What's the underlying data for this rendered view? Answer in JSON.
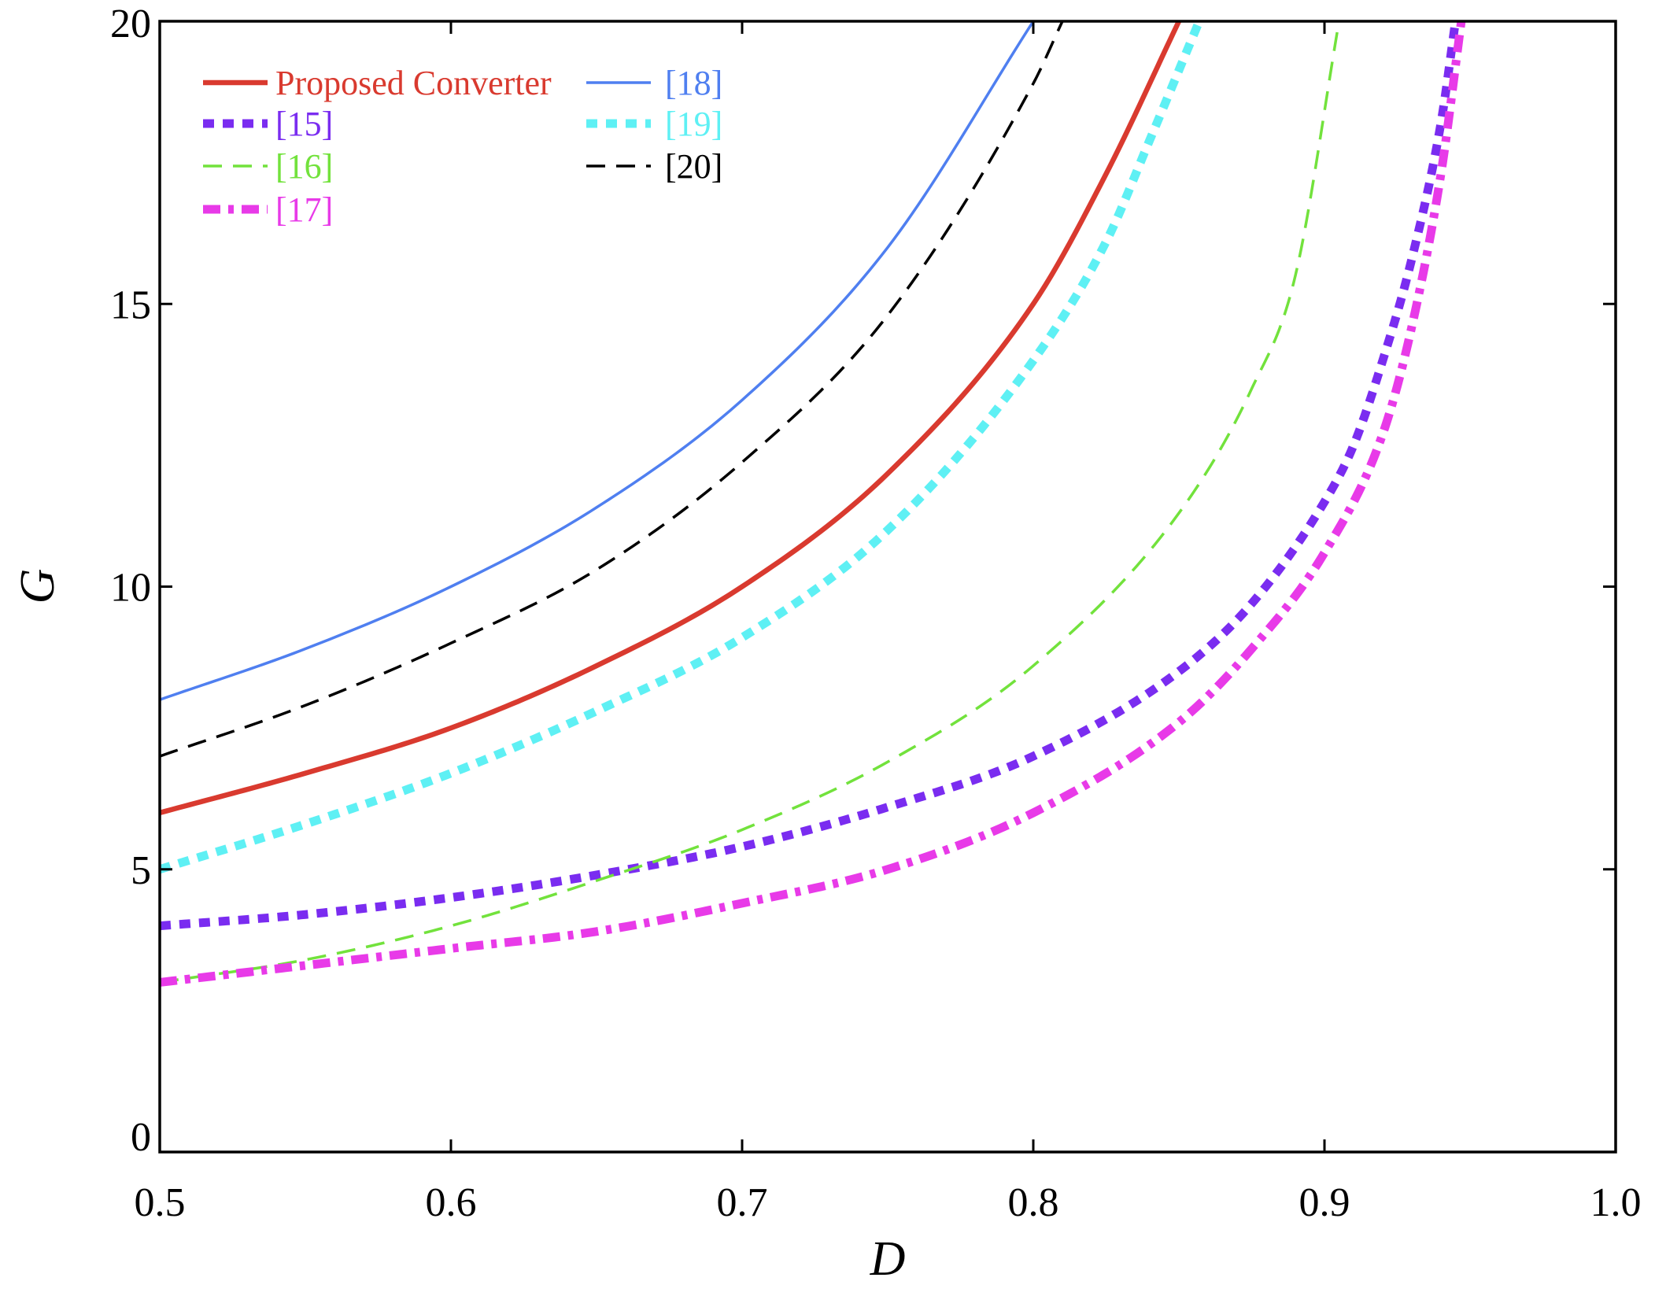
{
  "chart_data": {
    "type": "line",
    "title": "",
    "xlabel": "D",
    "ylabel": "G",
    "xlim": [
      0.5,
      1.0
    ],
    "ylim": [
      0,
      20
    ],
    "xticks": [
      "0.5",
      "0.6",
      "0.7",
      "0.8",
      "0.9",
      "1.0"
    ],
    "yticks": [
      "0",
      "5",
      "10",
      "15",
      "20"
    ],
    "grid": false,
    "legend_position": "top-left",
    "series": [
      {
        "name": "Proposed Converter",
        "color": "#d93a2f",
        "style": "solid-thick",
        "x": [
          0.5,
          0.55,
          0.6,
          0.65,
          0.7,
          0.75,
          0.8,
          0.825,
          0.85
        ],
        "y": [
          6.0,
          6.7,
          7.5,
          8.6,
          10.0,
          12.0,
          15.0,
          17.3,
          20.0
        ]
      },
      {
        "name": "[18]",
        "color": "#4f7ff0",
        "style": "solid-thin",
        "x": [
          0.5,
          0.55,
          0.6,
          0.65,
          0.7,
          0.75,
          0.8
        ],
        "y": [
          8.0,
          8.9,
          10.0,
          11.4,
          13.3,
          16.0,
          20.0
        ]
      },
      {
        "name": "[15]",
        "color": "#7a2cf0",
        "style": "dotted-thick",
        "x": [
          0.5,
          0.55,
          0.6,
          0.65,
          0.7,
          0.75,
          0.8,
          0.85,
          0.875,
          0.9,
          0.91,
          0.92,
          0.93,
          0.94,
          0.945
        ],
        "y": [
          4.0,
          4.2,
          4.5,
          4.9,
          5.4,
          6.1,
          7.0,
          8.5,
          9.7,
          11.5,
          12.5,
          14.0,
          15.8,
          18.2,
          20.0
        ]
      },
      {
        "name": "[19]",
        "color": "#5ef0f4",
        "style": "dotted-thick",
        "x": [
          0.5,
          0.55,
          0.6,
          0.65,
          0.7,
          0.75,
          0.8,
          0.825,
          0.84,
          0.857
        ],
        "y": [
          5.0,
          5.8,
          6.7,
          7.8,
          9.1,
          11.0,
          14.0,
          16.1,
          17.9,
          20.0
        ]
      },
      {
        "name": "[16]",
        "color": "#72e23c",
        "style": "dashed-thin",
        "x": [
          0.5,
          0.55,
          0.6,
          0.65,
          0.7,
          0.75,
          0.8,
          0.85,
          0.875,
          0.89,
          0.905
        ],
        "y": [
          3.0,
          3.4,
          4.0,
          4.8,
          5.7,
          6.9,
          8.6,
          11.3,
          13.5,
          15.5,
          20.0
        ]
      },
      {
        "name": "[20]",
        "color": "#000000",
        "style": "dashed-thin",
        "x": [
          0.5,
          0.55,
          0.6,
          0.65,
          0.7,
          0.75,
          0.8,
          0.81
        ],
        "y": [
          7.0,
          7.9,
          9.0,
          10.3,
          12.2,
          14.8,
          18.9,
          20.0
        ]
      },
      {
        "name": "[17]",
        "color": "#e83ae8",
        "style": "dash-dot-thick",
        "x": [
          0.5,
          0.55,
          0.6,
          0.65,
          0.7,
          0.75,
          0.8,
          0.85,
          0.875,
          0.9,
          0.92,
          0.93,
          0.94,
          0.947
        ],
        "y": [
          3.0,
          3.3,
          3.6,
          3.9,
          4.4,
          5.0,
          6.0,
          7.6,
          8.9,
          10.6,
          12.7,
          14.6,
          17.3,
          20.0
        ]
      }
    ],
    "legend_order": [
      "Proposed Converter",
      "[15]",
      "[16]",
      "[17]",
      "[18]",
      "[19]",
      "[20]"
    ]
  }
}
